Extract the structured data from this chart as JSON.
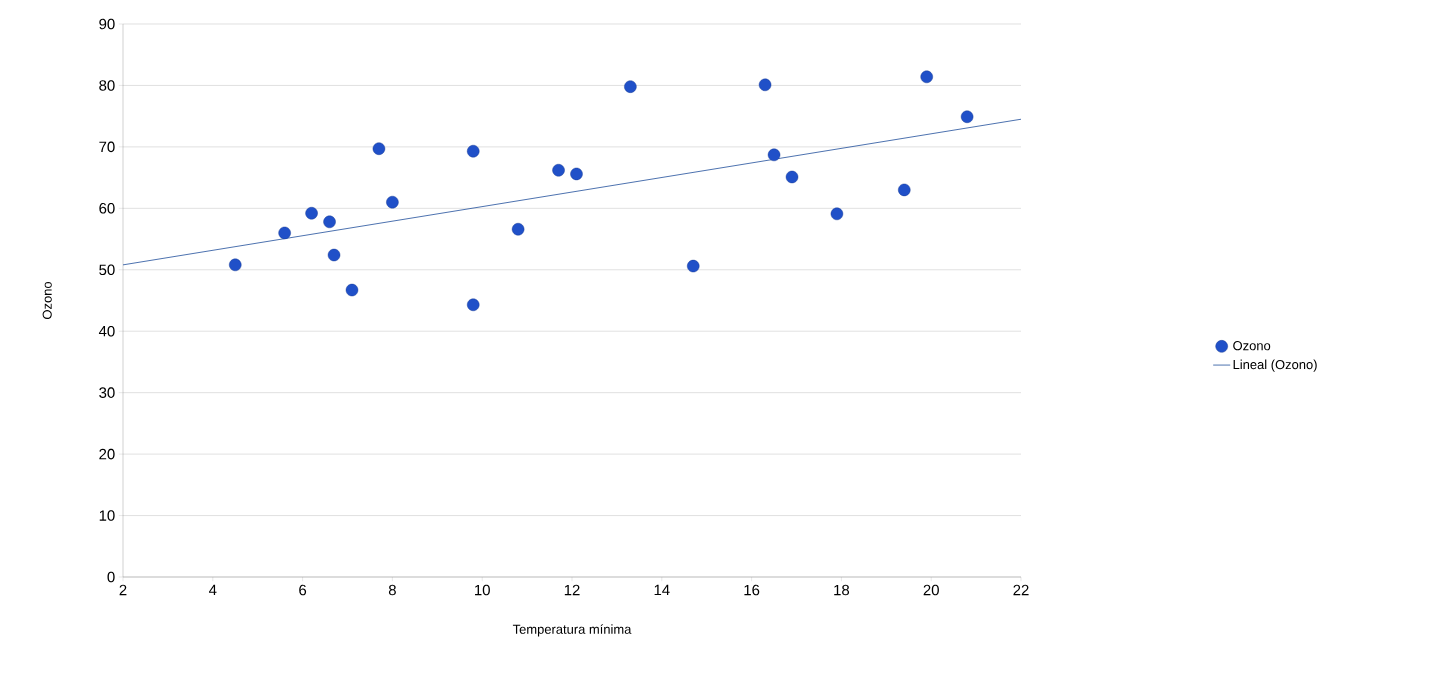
{
  "chart_data": {
    "type": "scatter",
    "xlabel": "Temperatura mínima",
    "ylabel": "Ozono",
    "xlim": [
      2,
      22
    ],
    "xticks": [
      2,
      4,
      6,
      8,
      10,
      12,
      14,
      16,
      18,
      20,
      22
    ],
    "ylim": [
      0,
      90
    ],
    "yticks": [
      0,
      10,
      20,
      30,
      40,
      50,
      60,
      70,
      80,
      90
    ],
    "grid": "y",
    "legend": "right",
    "series": [
      {
        "name": "Ozono",
        "type": "scatter",
        "marker": "circle",
        "color": "#2050c8",
        "x": [
          4.5,
          5.6,
          6.2,
          6.6,
          6.7,
          7.1,
          7.7,
          8.0,
          9.8,
          9.8,
          10.8,
          11.7,
          12.1,
          13.3,
          14.7,
          16.3,
          16.5,
          16.9,
          17.9,
          19.4,
          19.9,
          20.8
        ],
        "values": [
          50.8,
          56.0,
          59.2,
          57.8,
          52.4,
          46.7,
          69.7,
          61.0,
          69.3,
          44.3,
          56.6,
          66.2,
          65.6,
          79.8,
          50.6,
          80.1,
          68.7,
          65.1,
          59.1,
          63.0,
          81.4,
          74.9
        ]
      },
      {
        "name": "Lineal (Ozono)",
        "type": "line",
        "marker": "none",
        "color": "#1f4e9a",
        "x": [
          2,
          22
        ],
        "values": [
          50.8,
          74.5
        ]
      }
    ]
  }
}
